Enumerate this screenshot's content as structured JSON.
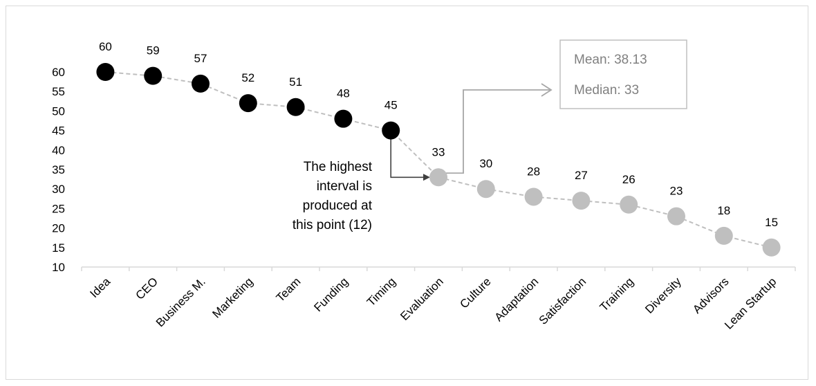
{
  "chart_data": {
    "type": "line",
    "categories": [
      "Idea",
      "CEO",
      "Business M.",
      "Marketing",
      "Team",
      "Funding",
      "Timing",
      "Evaluation",
      "Culture",
      "Adaptation",
      "Satisfaction",
      "Training",
      "Diversity",
      "Advisors",
      "Lean Startup"
    ],
    "values": [
      60,
      59,
      57,
      52,
      51,
      48,
      45,
      33,
      30,
      28,
      27,
      26,
      23,
      18,
      15
    ],
    "ylim": [
      10,
      60
    ],
    "yticks": [
      10,
      15,
      20,
      25,
      30,
      35,
      40,
      45,
      50,
      55,
      60
    ],
    "grid": false,
    "highlight_count": 7,
    "colors": {
      "high": "#000000",
      "low": "#bfbfbf",
      "line": "#bfbfbf",
      "arrow_dark": "#404040",
      "arrow_light": "#a6a6a6",
      "box_border": "#bfbfbf",
      "axis": "#d9d9d9"
    },
    "annotation": {
      "lines": [
        "The highest",
        "interval is",
        "produced at",
        "this point (12)"
      ]
    },
    "stats_box": {
      "mean_label": "Mean: 38.13",
      "median_label": "Median: 33"
    }
  }
}
